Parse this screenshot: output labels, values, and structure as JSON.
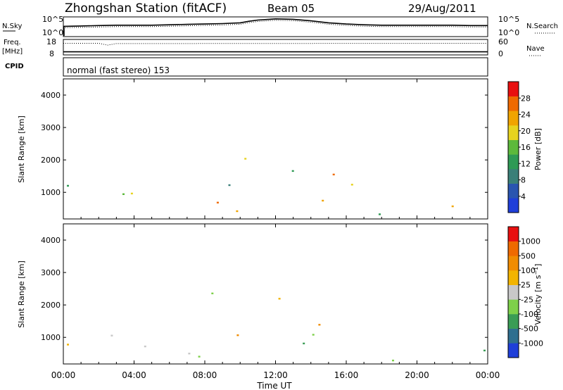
{
  "header": {
    "station": "Zhongshan Station (fitACF)",
    "beam": "Beam 05",
    "date": "29/Aug/2011"
  },
  "colors": {
    "power_scale": [
      "#1f3fd9",
      "#2a55b0",
      "#3a7f78",
      "#2f9a55",
      "#5db93c",
      "#e7d31f",
      "#f0a400",
      "#ef6a00",
      "#e81010"
    ],
    "velocity_scale": [
      "#e81010",
      "#ef6a00",
      "#f08c00",
      "#f2b400",
      "#c8c8c8",
      "#7ed04a",
      "#3a9c55",
      "#2f6f8f",
      "#1f3fd9"
    ]
  },
  "chart_data": [
    {
      "type": "line",
      "name": "N.Sky / N.Search",
      "left_label": "N.Sky",
      "right_label": "N.Search",
      "left_ticks": [
        "10^5",
        "10^0"
      ],
      "right_ticks": [
        "10^5",
        "10^0"
      ],
      "ylim": [
        0,
        5
      ],
      "x_hours": [
        0,
        1,
        2,
        3,
        4,
        5,
        6,
        7,
        8,
        9,
        10,
        10.5,
        11,
        12,
        13,
        14,
        15,
        16,
        17,
        18,
        19,
        20,
        21,
        22,
        23,
        24
      ],
      "values": [
        2.6,
        2.7,
        2.8,
        2.9,
        2.9,
        2.9,
        3.0,
        3.1,
        3.2,
        3.3,
        3.5,
        3.9,
        4.2,
        4.5,
        4.4,
        4.0,
        3.5,
        3.2,
        3.0,
        2.9,
        2.9,
        2.9,
        2.9,
        2.9,
        2.8,
        2.8
      ]
    },
    {
      "type": "line",
      "name": "Freq / Nave",
      "left_label": "Freq.",
      "left_unit": "[MHz]",
      "right_label": "Nave",
      "left_ticks": [
        "18",
        "8"
      ],
      "right_ticks": [
        "60",
        "0"
      ],
      "ylim": [
        8,
        18
      ],
      "freq_mhz": 10.0,
      "nave": [
        [
          0,
          45
        ],
        [
          2,
          45
        ],
        [
          2.5,
          38
        ],
        [
          3,
          44
        ],
        [
          24,
          45
        ]
      ]
    },
    {
      "type": "text",
      "left_label": "CPID",
      "cpid": "normal (fast stereo) 153"
    },
    {
      "type": "heatmap",
      "name": "Power",
      "ylabel": "Slant Range [km]",
      "colorbar_label": "Power [dB]",
      "colorbar_ticks": [
        "28",
        "24",
        "20",
        "16",
        "12",
        "8",
        "4"
      ],
      "ylim": [
        180,
        4500
      ],
      "yticks": [
        "1000",
        "2000",
        "3000",
        "4000"
      ],
      "zlim": [
        0,
        32
      ]
    },
    {
      "type": "heatmap",
      "name": "Velocity",
      "ylabel": "Slant Range [km]",
      "colorbar_label": "Velocity [m s^-1]",
      "colorbar_ticks": [
        "1000",
        "500",
        "100",
        "25",
        "-25",
        "-100",
        "-500",
        "-1000"
      ],
      "ylim": [
        180,
        4500
      ],
      "yticks": [
        "1000",
        "2000",
        "3000",
        "4000"
      ]
    }
  ],
  "time_axis": {
    "label": "Time UT",
    "ticks": [
      "00:00",
      "04:00",
      "08:00",
      "12:00",
      "16:00",
      "20:00",
      "00:00"
    ]
  }
}
